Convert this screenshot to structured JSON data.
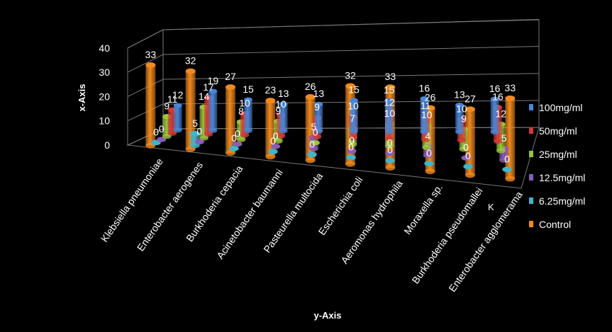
{
  "chart_data": {
    "type": "bar",
    "subtype": "3d-column",
    "xlabel": "y-Axis",
    "ylabel": "x-Axis",
    "ylim": [
      0,
      40
    ],
    "yticks": [
      0,
      10,
      20,
      30,
      40
    ],
    "grid": true,
    "legend_position": "right",
    "depth_axis_label": "K",
    "categories": [
      "Klebsiella pneumoniae",
      "Enterobacter aerogenes",
      "Burkhoderia cepacia",
      "Acinetobacter baumanni",
      "Pasteurella multocida",
      "Escherichia coli",
      "Aeromonas hydrophila",
      "Moraxella sp.",
      "Burkhoderia pseudomallei",
      "Enterobacter agglomerama"
    ],
    "series": [
      {
        "name": "100mg/ml",
        "color": "#4a86d8",
        "values": [
          12,
          19,
          15,
          13,
          13,
          15,
          15,
          16,
          13,
          16
        ]
      },
      {
        "name": "50mg/ml",
        "color": "#d33a36",
        "values": [
          11,
          17,
          10,
          10,
          9,
          10,
          12,
          11,
          10,
          16
        ]
      },
      {
        "name": "25mg/ml",
        "color": "#9ac43c",
        "values": [
          9,
          14,
          8,
          9,
          0,
          7,
          10,
          10,
          9,
          12
        ]
      },
      {
        "name": "12.5mg/ml",
        "color": "#8a5cb8",
        "values": [
          0,
          0,
          0,
          0,
          5,
          0,
          0,
          4,
          0,
          5
        ]
      },
      {
        "name": "6.25mg/ml",
        "color": "#3fb6cc",
        "values": [
          0,
          5,
          0,
          0,
          0,
          0,
          0,
          0,
          0,
          0
        ]
      },
      {
        "name": "Control",
        "color": "#f28a1e",
        "values": [
          33,
          32,
          27,
          23,
          26,
          32,
          33,
          26,
          27,
          33
        ]
      }
    ]
  }
}
